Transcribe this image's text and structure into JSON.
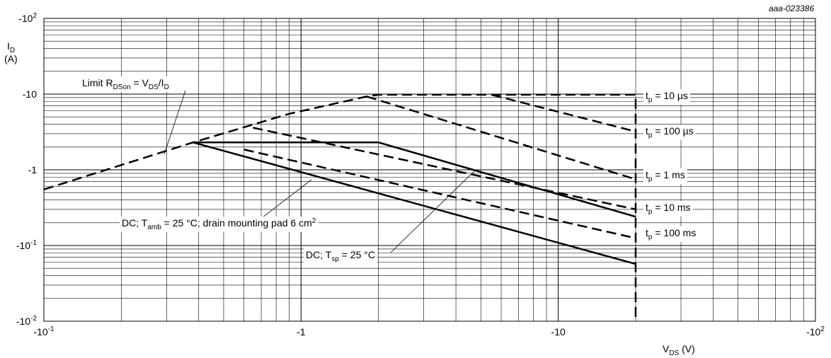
{
  "chart_data": {
    "type": "line",
    "figure_code": "aaa-023386",
    "x_axis": {
      "scale": "log",
      "range": [
        -0.1,
        -100
      ],
      "label_main": "V",
      "label_sub": "DS",
      "label_unit": " (V)",
      "tick_labels": [
        {
          "value": -0.1,
          "base": "-10",
          "exp": "-1"
        },
        {
          "value": -1,
          "base": "-1",
          "exp": ""
        },
        {
          "value": -10,
          "base": "-10",
          "exp": ""
        },
        {
          "value": -100,
          "base": "-10",
          "exp": "2"
        }
      ]
    },
    "y_axis": {
      "scale": "log",
      "range": [
        -0.01,
        -100
      ],
      "label_main": "I",
      "label_sub": "D",
      "label_unit": "(A)",
      "tick_labels": [
        {
          "value": -0.01,
          "base": "-10",
          "exp": "-2"
        },
        {
          "value": -0.1,
          "base": "-10",
          "exp": "-1"
        },
        {
          "value": -1,
          "base": "-1",
          "exp": ""
        },
        {
          "value": -10,
          "base": "-10",
          "exp": ""
        },
        {
          "value": -100,
          "base": "-10",
          "exp": "2"
        }
      ]
    },
    "grid": true,
    "series": [
      {
        "id": "limit",
        "style": "dashed",
        "points": [
          [
            -0.1,
            -0.55
          ],
          [
            -0.38,
            -2.3
          ],
          [
            -0.9,
            -5.5
          ],
          [
            -1.8,
            -9.3
          ],
          [
            -2.0,
            -9.8
          ],
          [
            -20,
            -9.8
          ],
          [
            -20,
            -0.01
          ]
        ]
      },
      {
        "id": "tp10us",
        "style": "dashed",
        "points": [
          [
            -5.5,
            -9.8
          ],
          [
            -20,
            -3.2
          ]
        ]
      },
      {
        "id": "tp100us",
        "style": "dashed",
        "points": [
          [
            -1.8,
            -9.3
          ],
          [
            -20,
            -0.75
          ]
        ]
      },
      {
        "id": "tp1ms",
        "style": "dashed",
        "points": [
          [
            -0.65,
            -3.6
          ],
          [
            -20,
            -0.3
          ]
        ]
      },
      {
        "id": "tp10ms",
        "style": "solid",
        "points": [
          [
            -0.38,
            -2.3
          ],
          [
            -2.0,
            -2.3
          ],
          [
            -20,
            -0.24
          ]
        ]
      },
      {
        "id": "tp100ms",
        "style": "dashed",
        "points": [
          [
            -0.6,
            -1.85
          ],
          [
            -20,
            -0.125
          ]
        ]
      },
      {
        "id": "dc_tsp",
        "style": "solid",
        "points": [
          [
            -0.38,
            -2.3
          ],
          [
            -20,
            -0.057
          ]
        ]
      }
    ],
    "annotations": [
      {
        "id": "limit-rdson",
        "parts": [
          [
            "Limit R",
            ""
          ],
          [
            "DSon",
            "sub"
          ],
          [
            " = V",
            ""
          ],
          [
            "DS",
            "sub"
          ],
          [
            "/I",
            ""
          ],
          [
            "D",
            "sub"
          ]
        ]
      },
      {
        "id": "tp-10us",
        "parts": [
          [
            "t",
            ""
          ],
          [
            "p",
            "sub"
          ],
          [
            " = 10 µs",
            ""
          ]
        ]
      },
      {
        "id": "tp-100us",
        "parts": [
          [
            "t",
            ""
          ],
          [
            "p",
            "sub"
          ],
          [
            " = 100 µs",
            ""
          ]
        ]
      },
      {
        "id": "tp-1ms",
        "parts": [
          [
            "t",
            ""
          ],
          [
            "p",
            "sub"
          ],
          [
            " = 1 ms",
            ""
          ]
        ]
      },
      {
        "id": "tp-10ms",
        "parts": [
          [
            "t",
            ""
          ],
          [
            "p",
            "sub"
          ],
          [
            " = 10 ms",
            ""
          ]
        ]
      },
      {
        "id": "tp-100ms",
        "parts": [
          [
            "t",
            ""
          ],
          [
            "p",
            "sub"
          ],
          [
            " = 100 ms",
            ""
          ]
        ]
      },
      {
        "id": "dc-tamb",
        "parts": [
          [
            "DC; T",
            ""
          ],
          [
            "amb",
            "sub"
          ],
          [
            " = 25 °C; drain mounting pad 6 cm",
            ""
          ],
          [
            "2",
            "sup"
          ]
        ]
      },
      {
        "id": "dc-tsp",
        "parts": [
          [
            "DC; T",
            ""
          ],
          [
            "sp",
            "sub"
          ],
          [
            " = 25 °C",
            ""
          ]
        ]
      }
    ]
  }
}
